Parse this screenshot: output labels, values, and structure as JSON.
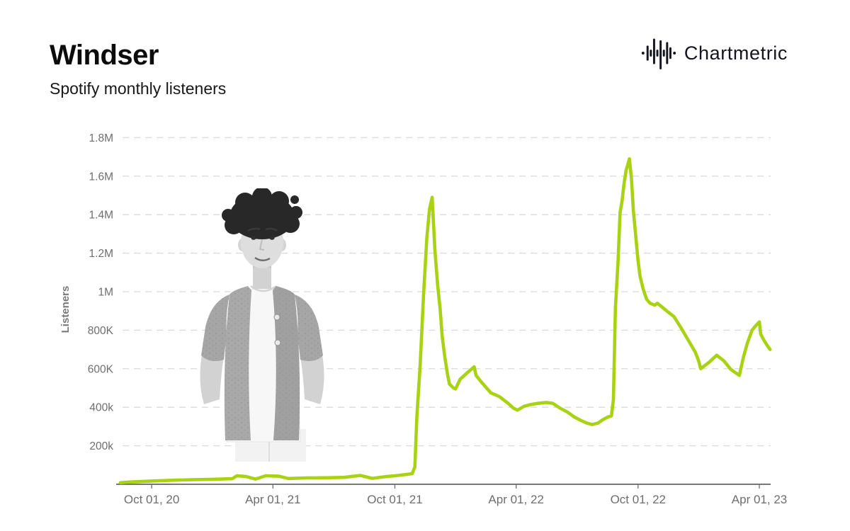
{
  "header": {
    "title": "Windser",
    "subtitle": "Spotify monthly listeners",
    "brand": {
      "name": "Chartmetric",
      "icon": "waveform-logo-icon"
    }
  },
  "overlay": {
    "artist_photo_alt": "Black-and-white cutout photo of the artist with curly dark hair, wearing an open knit short-sleeve cardigan over a white tee and white pants, hands behind back"
  },
  "chart_data": {
    "type": "line",
    "title": "Windser",
    "subtitle": "Spotify monthly listeners",
    "xlabel": "",
    "ylabel": "Listeners",
    "grid": true,
    "legend": false,
    "line_color": "#a9d214",
    "ylim": [
      0,
      1816000
    ],
    "x_domain": [
      "2020-08-13",
      "2023-04-18"
    ],
    "y_ticks": [
      {
        "value": 200000,
        "label": "200k"
      },
      {
        "value": 400000,
        "label": "400k"
      },
      {
        "value": 600000,
        "label": "600K"
      },
      {
        "value": 800000,
        "label": "800K"
      },
      {
        "value": 1000000,
        "label": "1M"
      },
      {
        "value": 1200000,
        "label": "1.2M"
      },
      {
        "value": 1400000,
        "label": "1.4M"
      },
      {
        "value": 1600000,
        "label": "1.6M"
      },
      {
        "value": 1800000,
        "label": "1.8M"
      }
    ],
    "x_ticks": [
      {
        "date": "2020-10-01",
        "label": "Oct 01, 20"
      },
      {
        "date": "2021-04-01",
        "label": "Apr 01, 21"
      },
      {
        "date": "2021-10-01",
        "label": "Oct 01, 21"
      },
      {
        "date": "2022-04-01",
        "label": "Apr 01, 22"
      },
      {
        "date": "2022-10-01",
        "label": "Oct 01, 22"
      },
      {
        "date": "2023-04-01",
        "label": "Apr 01, 23"
      }
    ],
    "series": [
      {
        "name": "Spotify monthly listeners",
        "points": [
          [
            "2020-08-15",
            8000
          ],
          [
            "2020-09-01",
            12000
          ],
          [
            "2020-10-01",
            17000
          ],
          [
            "2020-11-01",
            21000
          ],
          [
            "2020-12-01",
            24000
          ],
          [
            "2021-01-01",
            26000
          ],
          [
            "2021-01-30",
            29000
          ],
          [
            "2021-02-06",
            44000
          ],
          [
            "2021-02-20",
            40000
          ],
          [
            "2021-03-06",
            27000
          ],
          [
            "2021-03-21",
            44000
          ],
          [
            "2021-04-10",
            42000
          ],
          [
            "2021-04-24",
            30000
          ],
          [
            "2021-05-22",
            33000
          ],
          [
            "2021-06-19",
            34000
          ],
          [
            "2021-07-17",
            36000
          ],
          [
            "2021-08-10",
            46000
          ],
          [
            "2021-08-28",
            31000
          ],
          [
            "2021-09-18",
            40000
          ],
          [
            "2021-10-01",
            44000
          ],
          [
            "2021-10-16",
            50000
          ],
          [
            "2021-10-27",
            55000
          ],
          [
            "2021-10-31",
            90000
          ],
          [
            "2021-11-03",
            350000
          ],
          [
            "2021-11-08",
            620000
          ],
          [
            "2021-11-13",
            980000
          ],
          [
            "2021-11-18",
            1280000
          ],
          [
            "2021-11-22",
            1430000
          ],
          [
            "2021-11-26",
            1490000
          ],
          [
            "2021-11-30",
            1220000
          ],
          [
            "2021-12-04",
            1040000
          ],
          [
            "2021-12-08",
            910000
          ],
          [
            "2021-12-11",
            770000
          ],
          [
            "2021-12-15",
            660000
          ],
          [
            "2021-12-19",
            570000
          ],
          [
            "2021-12-22",
            520000
          ],
          [
            "2021-12-28",
            500000
          ],
          [
            "2021-12-31",
            495000
          ],
          [
            "2022-01-07",
            545000
          ],
          [
            "2022-01-18",
            580000
          ],
          [
            "2022-01-28",
            610000
          ],
          [
            "2022-01-31",
            565000
          ],
          [
            "2022-02-08",
            530000
          ],
          [
            "2022-02-22",
            475000
          ],
          [
            "2022-03-07",
            455000
          ],
          [
            "2022-03-20",
            420000
          ],
          [
            "2022-03-28",
            395000
          ],
          [
            "2022-04-03",
            385000
          ],
          [
            "2022-04-13",
            405000
          ],
          [
            "2022-04-24",
            415000
          ],
          [
            "2022-05-04",
            420000
          ],
          [
            "2022-05-16",
            425000
          ],
          [
            "2022-05-26",
            420000
          ],
          [
            "2022-06-06",
            395000
          ],
          [
            "2022-06-17",
            375000
          ],
          [
            "2022-06-27",
            350000
          ],
          [
            "2022-07-08",
            330000
          ],
          [
            "2022-07-16",
            318000
          ],
          [
            "2022-07-24",
            310000
          ],
          [
            "2022-08-02",
            318000
          ],
          [
            "2022-08-09",
            335000
          ],
          [
            "2022-08-17",
            350000
          ],
          [
            "2022-08-22",
            355000
          ],
          [
            "2022-08-25",
            440000
          ],
          [
            "2022-08-28",
            915000
          ],
          [
            "2022-09-01",
            1160000
          ],
          [
            "2022-09-04",
            1410000
          ],
          [
            "2022-09-07",
            1470000
          ],
          [
            "2022-09-10",
            1560000
          ],
          [
            "2022-09-13",
            1630000
          ],
          [
            "2022-09-18",
            1690000
          ],
          [
            "2022-09-21",
            1590000
          ],
          [
            "2022-09-24",
            1420000
          ],
          [
            "2022-09-28",
            1270000
          ],
          [
            "2022-10-01",
            1160000
          ],
          [
            "2022-10-04",
            1080000
          ],
          [
            "2022-10-09",
            1010000
          ],
          [
            "2022-10-14",
            960000
          ],
          [
            "2022-10-19",
            940000
          ],
          [
            "2022-10-26",
            930000
          ],
          [
            "2022-10-30",
            940000
          ],
          [
            "2022-11-06",
            920000
          ],
          [
            "2022-11-13",
            900000
          ],
          [
            "2022-11-24",
            870000
          ],
          [
            "2022-12-04",
            815000
          ],
          [
            "2022-12-15",
            750000
          ],
          [
            "2022-12-26",
            685000
          ],
          [
            "2022-12-31",
            640000
          ],
          [
            "2023-01-03",
            600000
          ],
          [
            "2023-01-16",
            635000
          ],
          [
            "2023-01-27",
            670000
          ],
          [
            "2023-02-07",
            640000
          ],
          [
            "2023-02-17",
            597000
          ],
          [
            "2023-03-02",
            565000
          ],
          [
            "2023-03-08",
            658000
          ],
          [
            "2023-03-14",
            733000
          ],
          [
            "2023-03-21",
            800000
          ],
          [
            "2023-03-27",
            825000
          ],
          [
            "2023-04-01",
            843000
          ],
          [
            "2023-04-03",
            780000
          ],
          [
            "2023-04-08",
            747000
          ],
          [
            "2023-04-14",
            715000
          ],
          [
            "2023-04-17",
            700000
          ]
        ]
      }
    ]
  }
}
